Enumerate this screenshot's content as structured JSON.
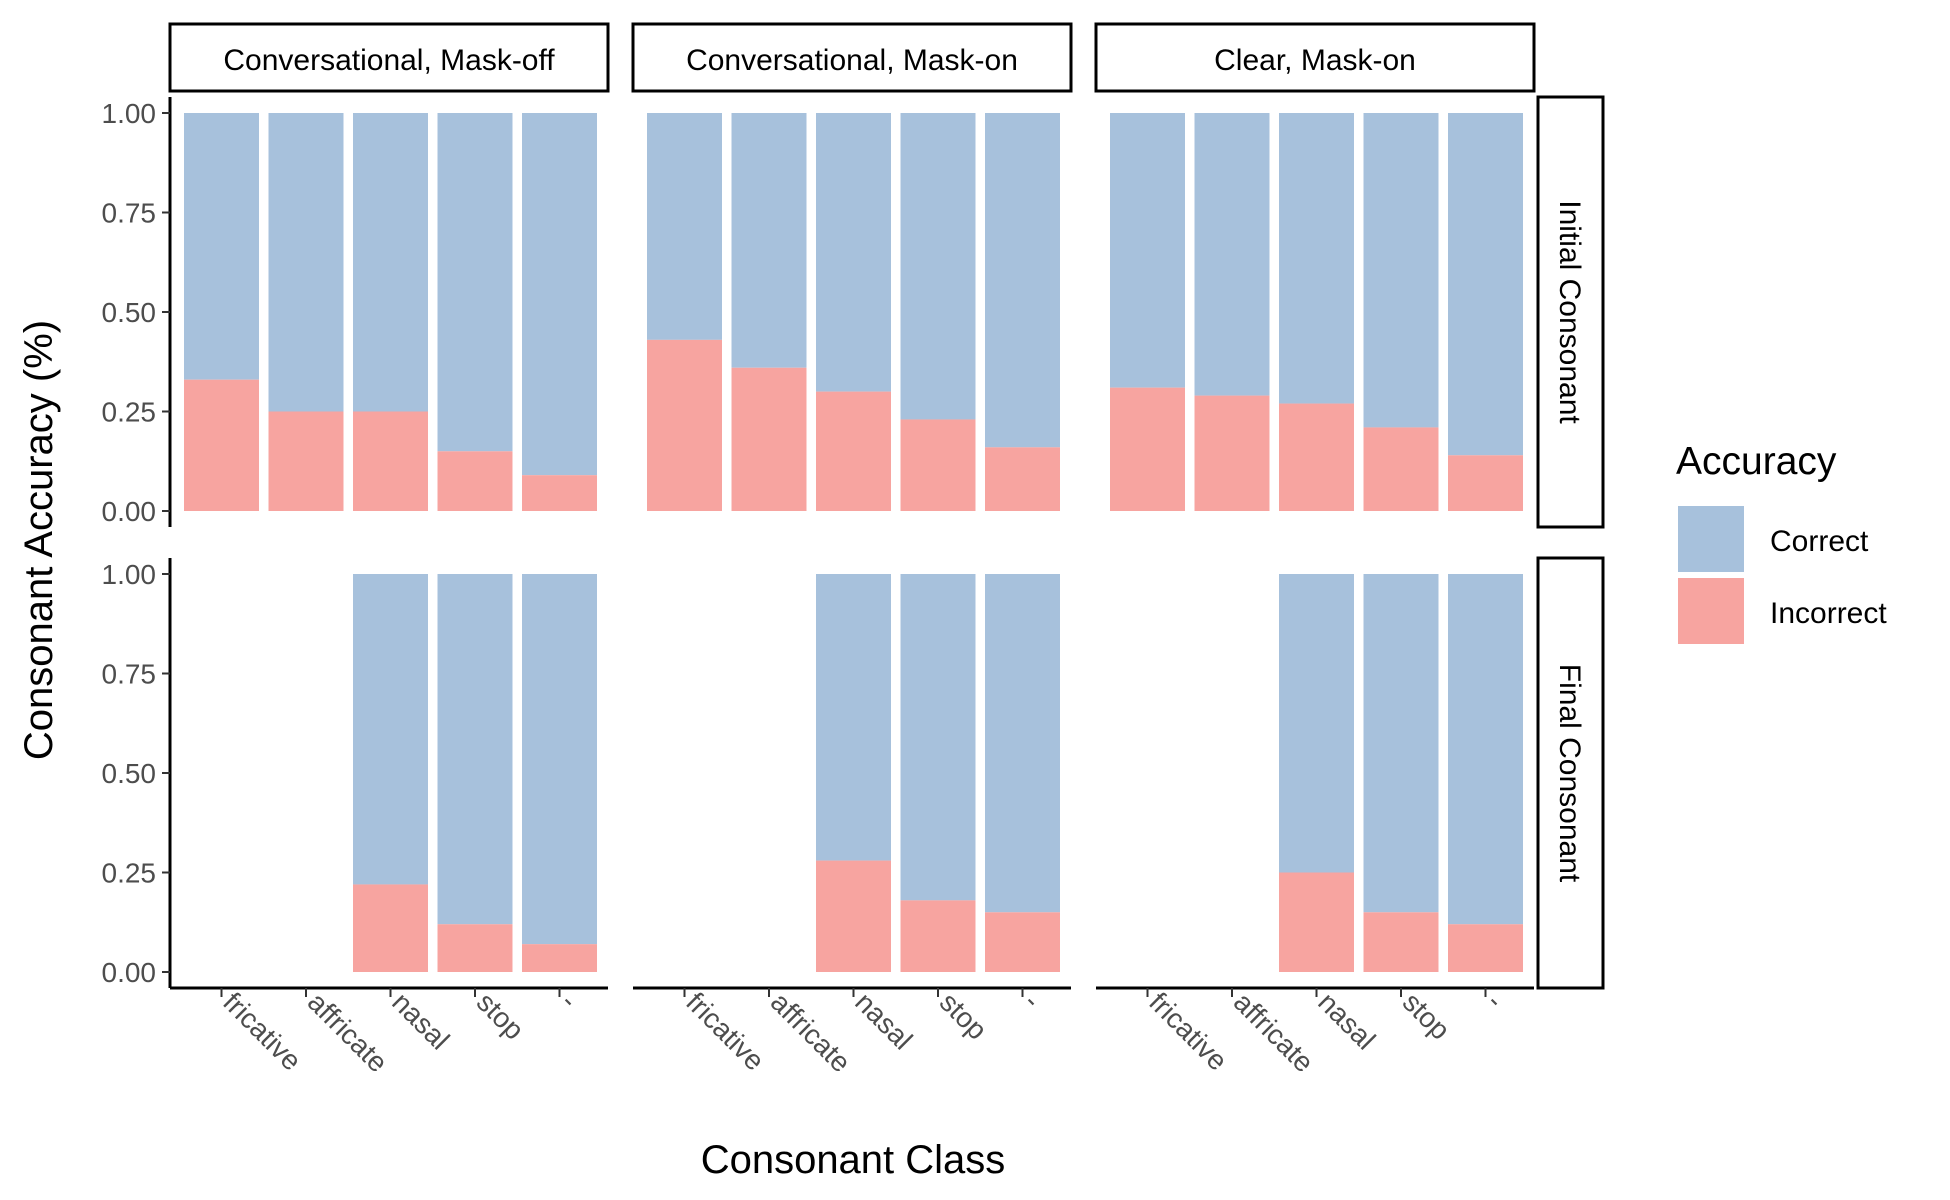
{
  "chart_data": {
    "type": "bar",
    "stacked": true,
    "x_title": "Consonant Class",
    "y_title": "Consonant Accuracy (%)",
    "categories": [
      "fricative",
      "affricate",
      "nasal",
      "stop",
      "-"
    ],
    "y_ticks": [
      "0.00",
      "0.25",
      "0.50",
      "0.75",
      "1.00"
    ],
    "ylim": [
      0,
      1
    ],
    "columns": [
      "Conversational, Mask-off",
      "Conversational, Mask-on",
      "Clear, Mask-on"
    ],
    "rows": [
      "Initial Consonant",
      "Final Consonant"
    ],
    "legend": {
      "title": "Accuracy",
      "position": "right",
      "items": [
        {
          "label": "Correct",
          "color": "#a7c1dc"
        },
        {
          "label": "Incorrect",
          "color": "#f7a4a0"
        }
      ]
    },
    "grid": false,
    "panels": [
      [
        {
          "correct": [
            0.67,
            0.75,
            0.75,
            0.85,
            0.91
          ],
          "incorrect": [
            0.33,
            0.25,
            0.25,
            0.15,
            0.09
          ]
        },
        {
          "correct": [
            0.57,
            0.64,
            0.7,
            0.77,
            0.84
          ],
          "incorrect": [
            0.43,
            0.36,
            0.3,
            0.23,
            0.16
          ]
        },
        {
          "correct": [
            0.69,
            0.71,
            0.73,
            0.79,
            0.86
          ],
          "incorrect": [
            0.31,
            0.29,
            0.27,
            0.21,
            0.14
          ]
        }
      ],
      [
        {
          "correct": [
            null,
            null,
            0.78,
            0.88,
            0.93
          ],
          "incorrect": [
            null,
            null,
            0.22,
            0.12,
            0.07
          ]
        },
        {
          "correct": [
            null,
            null,
            0.72,
            0.82,
            0.85
          ],
          "incorrect": [
            null,
            null,
            0.28,
            0.18,
            0.15
          ]
        },
        {
          "correct": [
            null,
            null,
            0.75,
            0.85,
            0.88
          ],
          "incorrect": [
            null,
            null,
            0.25,
            0.15,
            0.12
          ]
        }
      ]
    ]
  }
}
